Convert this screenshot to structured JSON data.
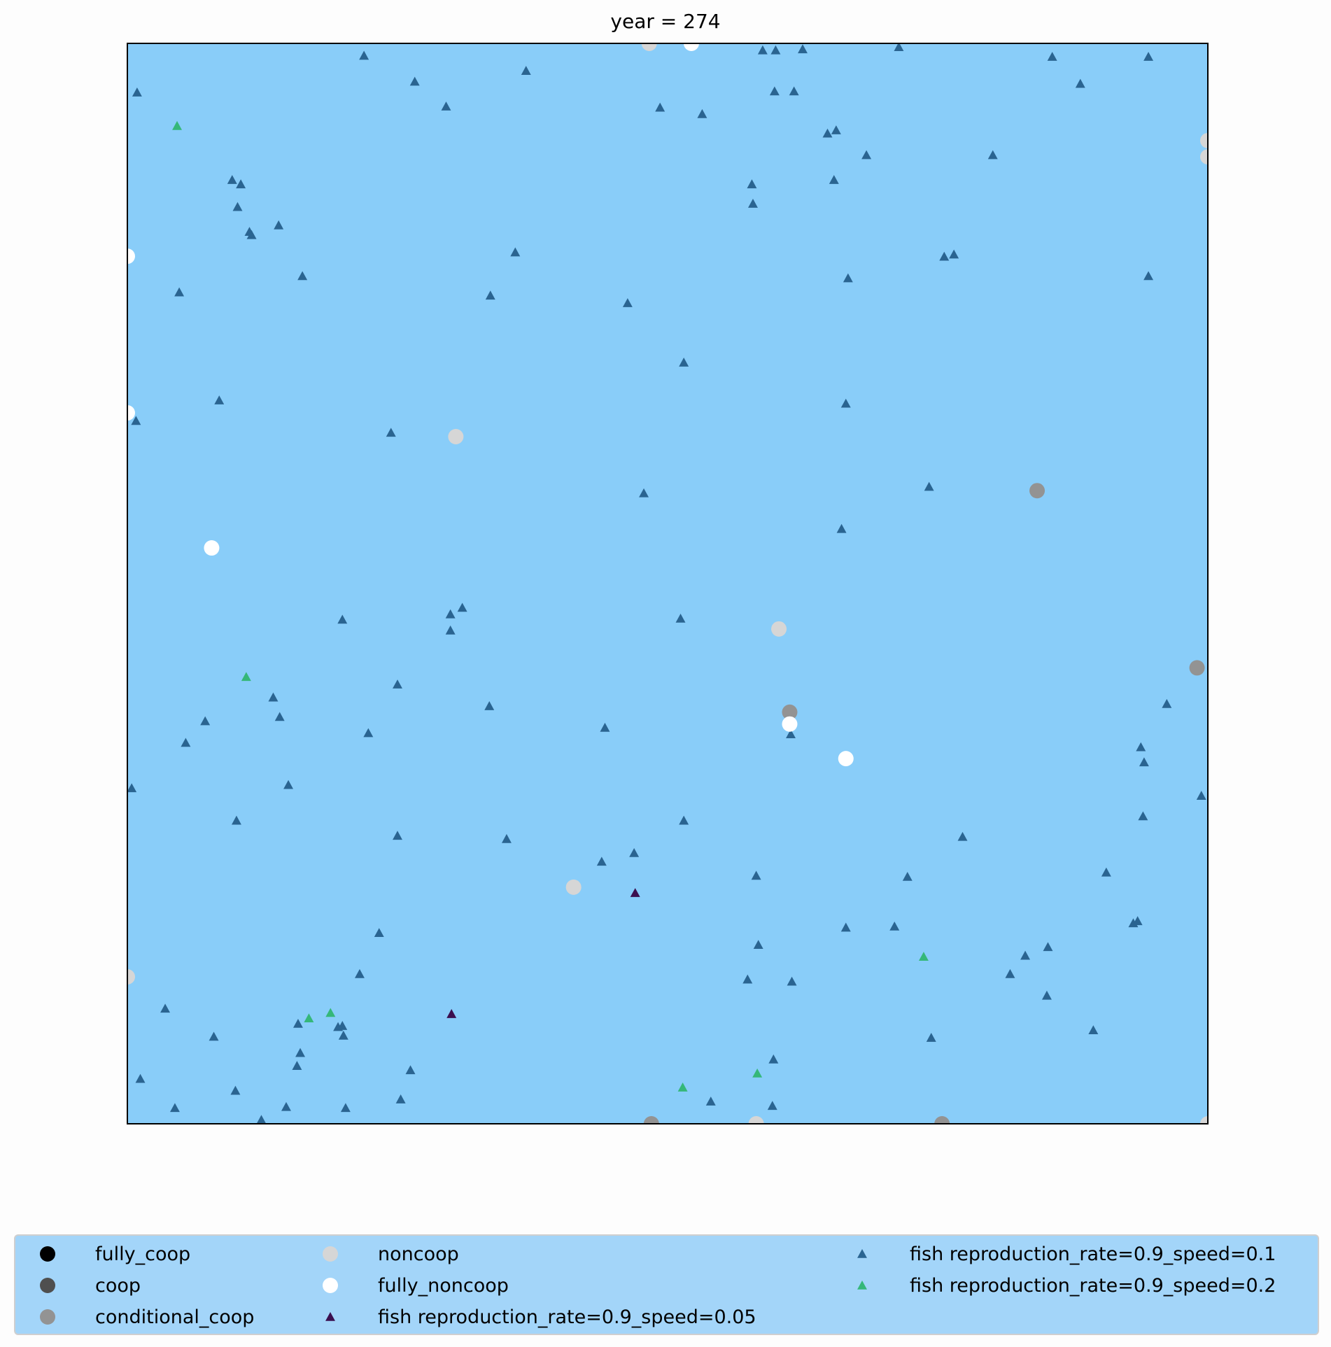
{
  "chart_data": {
    "type": "scatter",
    "title": "year = 274",
    "xlabel": "",
    "ylabel": "",
    "xlim": [
      0,
      100
    ],
    "ylim": [
      0,
      100
    ],
    "grid": false,
    "background_color": "#89cdf9",
    "legend_placement": "bottom",
    "series": [
      {
        "name": "fully_coop",
        "marker": "circle",
        "color": "#000000",
        "points": []
      },
      {
        "name": "coop",
        "marker": "circle",
        "color": "#4f4f4f",
        "points": []
      },
      {
        "name": "conditional_coop",
        "marker": "circle",
        "color": "#939393",
        "points": [
          [
            84.2,
            58.6
          ],
          [
            99.0,
            42.2
          ],
          [
            61.3,
            38.1
          ],
          [
            48.5,
            0.0
          ],
          [
            75.4,
            0.0
          ]
        ]
      },
      {
        "name": "noncoop",
        "marker": "circle",
        "color": "#d6d6d6",
        "points": [
          [
            48.3,
            100.0
          ],
          [
            100.0,
            91.0
          ],
          [
            100.0,
            89.5
          ],
          [
            30.4,
            63.6
          ],
          [
            60.3,
            45.8
          ],
          [
            41.3,
            21.9
          ],
          [
            0.0,
            13.6
          ],
          [
            58.2,
            0.0
          ],
          [
            100.0,
            0.0
          ]
        ]
      },
      {
        "name": "fully_noncoop",
        "marker": "circle",
        "color": "#ffffff",
        "points": [
          [
            52.2,
            100.0
          ],
          [
            0.0,
            80.3
          ],
          [
            0.0,
            65.8
          ],
          [
            7.8,
            53.3
          ],
          [
            61.3,
            37.0
          ],
          [
            66.5,
            33.8
          ]
        ]
      },
      {
        "name": "fish reproduction_rate=0.9_speed=0.05",
        "marker": "triangle",
        "color": "#3b0f4f",
        "points": [
          [
            47.0,
            21.3
          ],
          [
            30.0,
            10.1
          ]
        ]
      },
      {
        "name": "fish reproduction_rate=0.9_speed=0.1",
        "marker": "triangle",
        "color": "#2a6491",
        "points": [
          [
            21.9,
            98.8
          ],
          [
            26.6,
            96.4
          ],
          [
            36.9,
            97.4
          ],
          [
            29.5,
            94.1
          ],
          [
            0.9,
            95.4
          ],
          [
            58.8,
            99.3
          ],
          [
            60.0,
            99.3
          ],
          [
            62.5,
            99.4
          ],
          [
            71.4,
            99.6
          ],
          [
            85.6,
            98.7
          ],
          [
            88.2,
            96.2
          ],
          [
            94.5,
            98.7
          ],
          [
            53.2,
            93.4
          ],
          [
            59.9,
            95.5
          ],
          [
            64.8,
            91.6
          ],
          [
            65.6,
            91.9
          ],
          [
            68.4,
            89.6
          ],
          [
            80.1,
            89.6
          ],
          [
            9.7,
            87.3
          ],
          [
            10.5,
            86.9
          ],
          [
            10.2,
            84.8
          ],
          [
            11.3,
            82.5
          ],
          [
            11.5,
            82.2
          ],
          [
            14.0,
            83.1
          ],
          [
            16.2,
            78.4
          ],
          [
            35.9,
            80.6
          ],
          [
            33.6,
            76.6
          ],
          [
            4.8,
            76.9
          ],
          [
            46.3,
            75.9
          ],
          [
            49.3,
            94.0
          ],
          [
            61.7,
            95.5
          ],
          [
            57.8,
            86.9
          ],
          [
            57.9,
            85.1
          ],
          [
            65.4,
            87.3
          ],
          [
            66.7,
            78.2
          ],
          [
            76.5,
            80.4
          ],
          [
            75.6,
            80.2
          ],
          [
            94.5,
            78.4
          ],
          [
            51.5,
            70.4
          ],
          [
            66.5,
            66.6
          ],
          [
            8.5,
            66.9
          ],
          [
            0.8,
            65.0
          ],
          [
            24.4,
            63.9
          ],
          [
            47.8,
            58.3
          ],
          [
            66.1,
            55.0
          ],
          [
            74.2,
            58.9
          ],
          [
            19.9,
            46.6
          ],
          [
            29.9,
            47.1
          ],
          [
            31.0,
            47.7
          ],
          [
            29.9,
            45.6
          ],
          [
            51.2,
            46.7
          ],
          [
            25.0,
            40.6
          ],
          [
            13.5,
            39.4
          ],
          [
            14.1,
            37.6
          ],
          [
            7.2,
            37.2
          ],
          [
            5.4,
            35.2
          ],
          [
            22.3,
            36.1
          ],
          [
            33.5,
            38.6
          ],
          [
            44.2,
            36.6
          ],
          [
            61.4,
            36.0
          ],
          [
            14.9,
            31.3
          ],
          [
            0.4,
            31.0
          ],
          [
            10.1,
            28.0
          ],
          [
            25.0,
            26.6
          ],
          [
            35.1,
            26.3
          ],
          [
            46.9,
            25.0
          ],
          [
            43.9,
            24.2
          ],
          [
            51.5,
            28.0
          ],
          [
            58.2,
            22.9
          ],
          [
            72.2,
            22.8
          ],
          [
            77.3,
            26.5
          ],
          [
            90.6,
            23.2
          ],
          [
            93.8,
            34.8
          ],
          [
            94.1,
            33.4
          ],
          [
            96.2,
            38.8
          ],
          [
            99.4,
            30.3
          ],
          [
            94.0,
            28.4
          ],
          [
            93.5,
            18.7
          ],
          [
            93.1,
            18.5
          ],
          [
            71.0,
            18.2
          ],
          [
            66.5,
            18.1
          ],
          [
            23.3,
            17.6
          ],
          [
            21.5,
            13.8
          ],
          [
            58.4,
            16.5
          ],
          [
            57.4,
            13.3
          ],
          [
            61.5,
            13.1
          ],
          [
            81.7,
            13.8
          ],
          [
            83.1,
            15.5
          ],
          [
            85.2,
            16.3
          ],
          [
            85.1,
            11.8
          ],
          [
            89.4,
            8.6
          ],
          [
            74.4,
            7.9
          ],
          [
            3.5,
            10.6
          ],
          [
            8.0,
            8.0
          ],
          [
            15.8,
            9.2
          ],
          [
            19.5,
            8.9
          ],
          [
            20.0,
            8.1
          ],
          [
            19.9,
            9.0
          ],
          [
            16.0,
            6.5
          ],
          [
            15.7,
            5.3
          ],
          [
            26.2,
            4.9
          ],
          [
            1.2,
            4.1
          ],
          [
            10.0,
            3.0
          ],
          [
            4.4,
            1.4
          ],
          [
            14.7,
            1.5
          ],
          [
            20.2,
            1.4
          ],
          [
            25.3,
            2.2
          ],
          [
            12.4,
            0.3
          ],
          [
            54.0,
            2.0
          ],
          [
            59.7,
            1.6
          ],
          [
            59.8,
            5.9
          ]
        ]
      },
      {
        "name": "fish reproduction_rate=0.9_speed=0.2",
        "marker": "triangle",
        "color": "#35b779",
        "points": [
          [
            4.6,
            92.3
          ],
          [
            11.0,
            41.3
          ],
          [
            73.7,
            15.4
          ],
          [
            16.8,
            9.7
          ],
          [
            18.8,
            10.2
          ],
          [
            58.3,
            4.6
          ],
          [
            51.4,
            3.3
          ]
        ]
      }
    ]
  }
}
